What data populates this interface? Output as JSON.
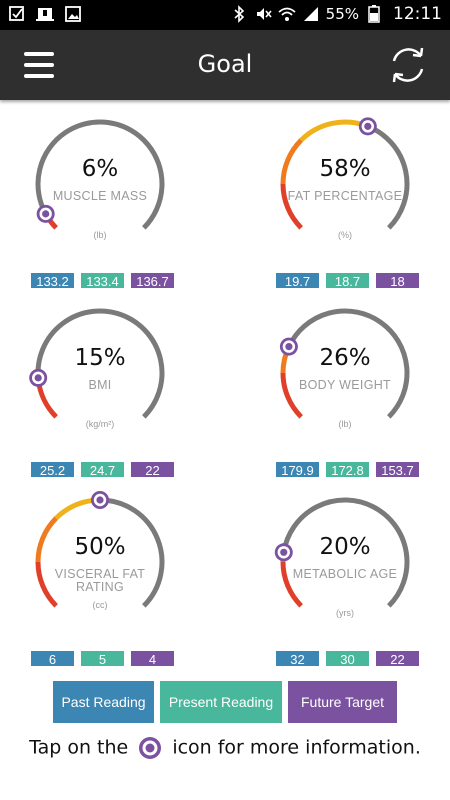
{
  "status_bar": {
    "battery": "55%",
    "time": "12:11"
  },
  "header": {
    "title": "Goal",
    "menu_icon": "hamburger-menu-icon",
    "refresh_icon": "refresh-icon"
  },
  "colors": {
    "past": "#3c86b4",
    "present": "#49b79c",
    "future": "#7a52a0",
    "track": "#7a7a7a",
    "arc_red": "#e0402a",
    "arc_orange": "#f07a1e",
    "arc_yellow": "#f0b21a"
  },
  "gauges": [
    {
      "pct": "6%",
      "name": "MUSCLE MASS",
      "unit": "(lb)",
      "value": 0.06,
      "past": "133.2",
      "present": "133.4",
      "future": "136.7"
    },
    {
      "pct": "58%",
      "name": "FAT PERCENTAGE",
      "unit": "(%)",
      "value": 0.58,
      "past": "19.7",
      "present": "18.7",
      "future": "18"
    },
    {
      "pct": "15%",
      "name": "BMI",
      "unit": "(kg/m²)",
      "value": 0.15,
      "past": "25.2",
      "present": "24.7",
      "future": "22"
    },
    {
      "pct": "26%",
      "name": "BODY WEIGHT",
      "unit": "(lb)",
      "value": 0.26,
      "past": "179.9",
      "present": "172.8",
      "future": "153.7"
    },
    {
      "pct": "50%",
      "name": "VISCERAL FAT RATING",
      "unit": "(cc)",
      "value": 0.5,
      "past": "6",
      "present": "5",
      "future": "4"
    },
    {
      "pct": "20%",
      "name": "METABOLIC AGE",
      "unit": "(yrs)",
      "value": 0.2,
      "past": "32",
      "present": "30",
      "future": "22"
    }
  ],
  "legend": {
    "past": "Past Reading",
    "present": "Present Reading",
    "future": "Future Target"
  },
  "tip": {
    "before": "Tap on the",
    "after": "icon for more information."
  }
}
